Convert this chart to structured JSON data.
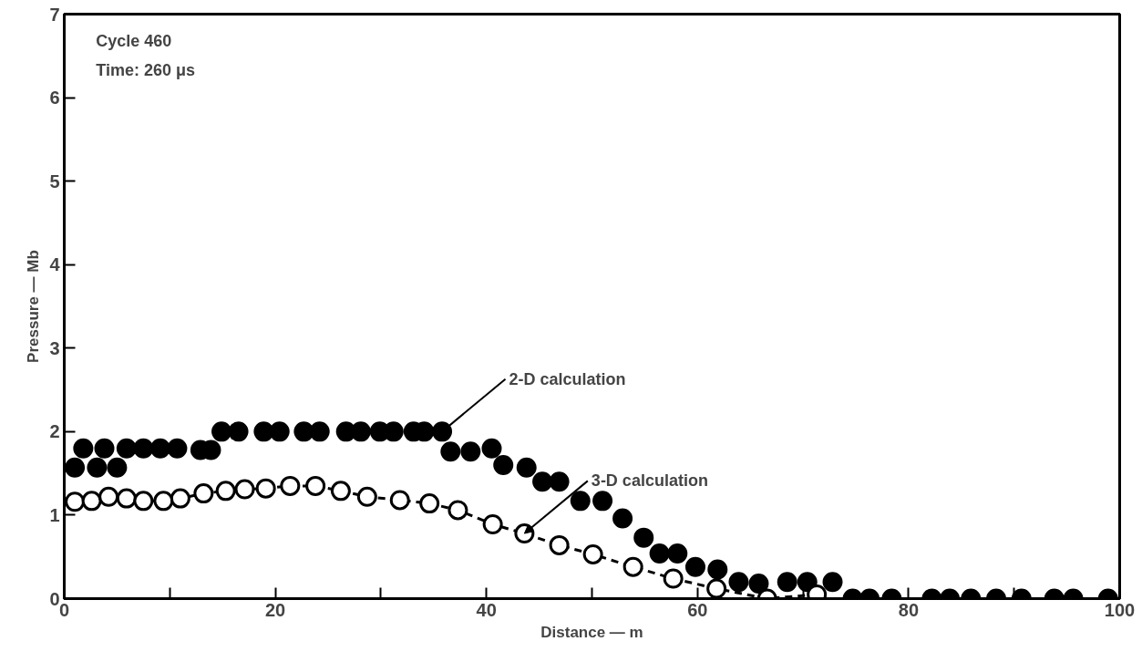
{
  "chart_data": {
    "type": "scatter",
    "xlabel": "Distance — m",
    "ylabel": "Pressure — Mb",
    "xlim": [
      0,
      100
    ],
    "ylim": [
      0,
      7
    ],
    "xticks": [
      0,
      {
        "value": 10,
        "label": null
      },
      20,
      {
        "value": 30,
        "label": null
      },
      40,
      {
        "value": 50,
        "label": null
      },
      60,
      {
        "value": 70,
        "label": null
      },
      80,
      {
        "value": 90,
        "label": null
      },
      100
    ],
    "yticks": [
      0,
      1,
      2,
      3,
      4,
      5,
      6,
      7
    ],
    "grid": false,
    "annotations": [
      "Cycle 460",
      "Time: 260 μs",
      {
        "text": "2-D calculation",
        "x": 35.8,
        "y": 2.0
      },
      {
        "text": "3-D calculation",
        "x": 43.6,
        "y": 0.78
      }
    ],
    "series": [
      {
        "marker": "circle",
        "color": "#000000",
        "x": [
          1.0,
          3.1,
          5.0,
          1.8,
          3.8,
          5.9,
          7.5,
          9.1,
          10.7,
          12.9,
          13.9,
          14.9,
          16.5,
          18.9,
          20.4,
          22.7,
          24.2,
          26.7,
          28.1,
          29.9,
          31.2,
          33.1,
          34.1,
          35.8,
          36.6,
          38.5,
          40.5,
          41.6,
          43.8,
          45.3,
          46.9,
          48.9,
          51.0,
          52.9,
          54.9,
          56.4,
          58.1,
          59.8,
          61.9,
          63.9,
          65.8,
          68.5,
          70.4,
          72.8,
          74.7,
          76.3,
          78.4,
          82.2,
          83.9,
          85.9,
          88.3,
          90.7,
          93.8,
          95.6,
          98.9
        ],
        "values": [
          1.57,
          1.57,
          1.57,
          1.8,
          1.8,
          1.8,
          1.8,
          1.8,
          1.8,
          1.78,
          1.78,
          2.0,
          2.0,
          2.0,
          2.0,
          2.0,
          2.0,
          2.0,
          2.0,
          2.0,
          2.0,
          2.0,
          2.0,
          2.0,
          1.76,
          1.76,
          1.8,
          1.6,
          1.57,
          1.4,
          1.4,
          1.17,
          1.17,
          0.96,
          0.73,
          0.54,
          0.54,
          0.38,
          0.35,
          0.2,
          0.18,
          0.2,
          0.2,
          0.2,
          0.0,
          0.0,
          0.0,
          0.0,
          0.0,
          0.0,
          0.0,
          0.0,
          0.0,
          0.0,
          0.0
        ]
      },
      {
        "type": "line",
        "marker": "circle",
        "line_style": "dashed",
        "color": "#000000",
        "x": [
          1.0,
          2.6,
          4.2,
          5.9,
          7.5,
          9.4,
          11.0,
          13.2,
          15.3,
          17.1,
          19.1,
          21.4,
          23.8,
          26.2,
          28.7,
          31.8,
          34.6,
          37.3,
          40.6,
          43.6,
          46.9,
          50.1,
          53.9,
          57.7,
          61.8,
          66.6,
          71.3
        ],
        "values": [
          1.16,
          1.17,
          1.22,
          1.2,
          1.17,
          1.17,
          1.2,
          1.26,
          1.29,
          1.31,
          1.32,
          1.35,
          1.35,
          1.29,
          1.22,
          1.18,
          1.14,
          1.06,
          0.89,
          0.78,
          0.64,
          0.53,
          0.38,
          0.24,
          0.12,
          0.0,
          0.05
        ]
      }
    ]
  }
}
